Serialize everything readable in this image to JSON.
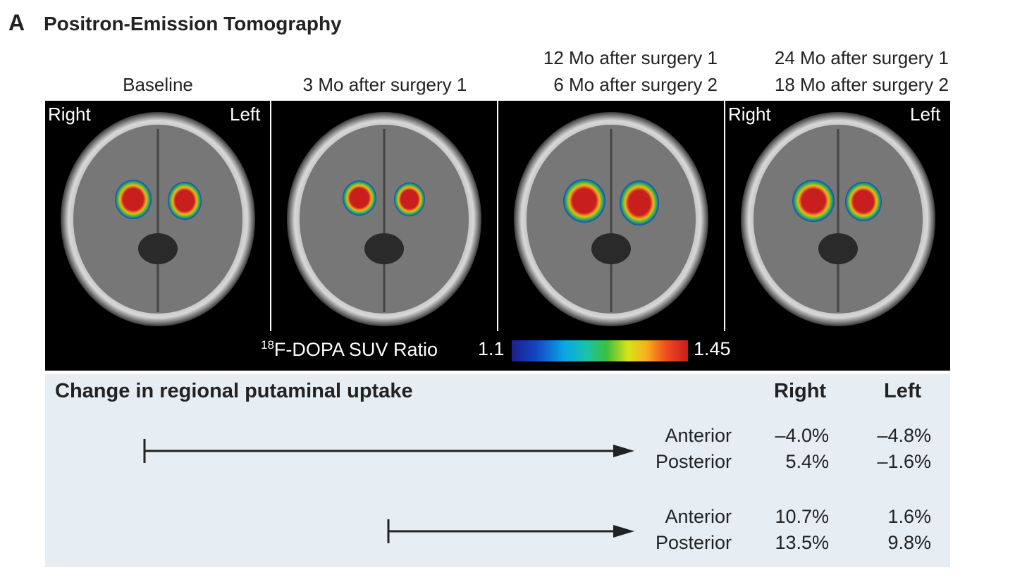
{
  "panel": {
    "letter": "A",
    "title": "Positron-Emission Tomography"
  },
  "columns": [
    {
      "line1": "",
      "line2": "Baseline"
    },
    {
      "line1": "",
      "line2": "3 Mo after surgery 1"
    },
    {
      "line1": "12 Mo after surgery 1",
      "line2": "6 Mo after surgery 2"
    },
    {
      "line1": "24 Mo after surgery 1",
      "line2": "18 Mo after surgery 2"
    }
  ],
  "scan_labels": {
    "first": {
      "right": "Right",
      "left": "Left"
    },
    "last": {
      "right": "Right",
      "left": "Left"
    }
  },
  "scale": {
    "isotope_superscript": "18",
    "label": "F-DOPA SUV Ratio",
    "min": "1.1",
    "max": "1.45",
    "colors": [
      "#1c1f8a",
      "#1247c4",
      "#0aa6e8",
      "#3fbf3f",
      "#d8e21a",
      "#f7b21b",
      "#ee4a1e",
      "#c81e1e"
    ]
  },
  "table": {
    "title": "Change in regional putaminal uptake",
    "headers": {
      "right": "Right",
      "left": "Left"
    },
    "rows": [
      {
        "region": "Anterior",
        "right": "–4.0%",
        "left": "–4.8%"
      },
      {
        "region": "Posterior",
        "right": "5.4%",
        "left": "–1.6%"
      },
      {
        "region": "Anterior",
        "right": "10.7%",
        "left": "1.6%"
      },
      {
        "region": "Posterior",
        "right": "13.5%",
        "left": "9.8%"
      }
    ]
  }
}
